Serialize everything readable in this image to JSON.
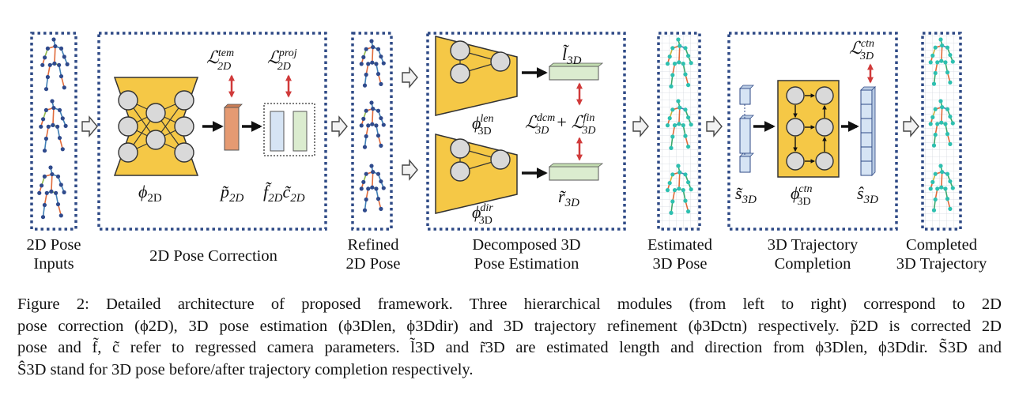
{
  "stages": {
    "input": "2D Pose\nInputs",
    "correction": "2D Pose Correction",
    "refined": "Refined\n2D Pose",
    "decomposed": "Decomposed 3D\nPose Estimation",
    "estimated": "Estimated\n3D Pose",
    "trajectory": "3D Trajectory\nCompletion",
    "completed": "Completed\n3D Trajectory"
  },
  "symbols": {
    "phi_2d": "ϕ2D",
    "p_2d": "p̃2D",
    "f_2d": "f̃2D",
    "c_2d": "c̃2D",
    "loss_tem": "ℒ2Dtem",
    "loss_proj": "ℒ2Dproj",
    "l_3d": "l̃3D",
    "r_3d": "r̃3D",
    "phi_len": "ϕ3Dlen",
    "phi_dir": "ϕ3Ddir",
    "loss_dcm_fin": "ℒ3Ddcm + ℒ3Dfin",
    "s_3d": "s̃3D",
    "phi_ctn": "ϕ3Dctn",
    "s_hat_3d": "ŝ3D",
    "loss_ctn": "ℒ3Dctn"
  },
  "caption": [
    "Figure 2: Detailed architecture of proposed framework. Three hierarchical modules (from left to right) correspond to 2D",
    "pose correction (ϕ2D), 3D pose estimation (ϕ3Dlen, ϕ3Ddir) and 3D trajectory refinement (ϕ3Dctn) respectively. p̃2D is corrected 2D",
    "pose and f̃, c̃ refer to regressed camera parameters. l̃3D and r̃3D are estimated length and direction from ϕ3Dlen, ϕ3Ddir. S̃3D and",
    "Ŝ3D stand for 3D pose before/after trajectory completion respectively."
  ],
  "colors": {
    "border": "#2f4a86",
    "network": "#f5c846",
    "orange_vector": "#e59a72",
    "blue_vector": "#d6e4f4",
    "green_vector": "#dbeccf",
    "loss_arrow": "#d03a3a",
    "skeleton_2d": "#2f4a8c",
    "skeleton_3d": "#2ec0b0"
  }
}
